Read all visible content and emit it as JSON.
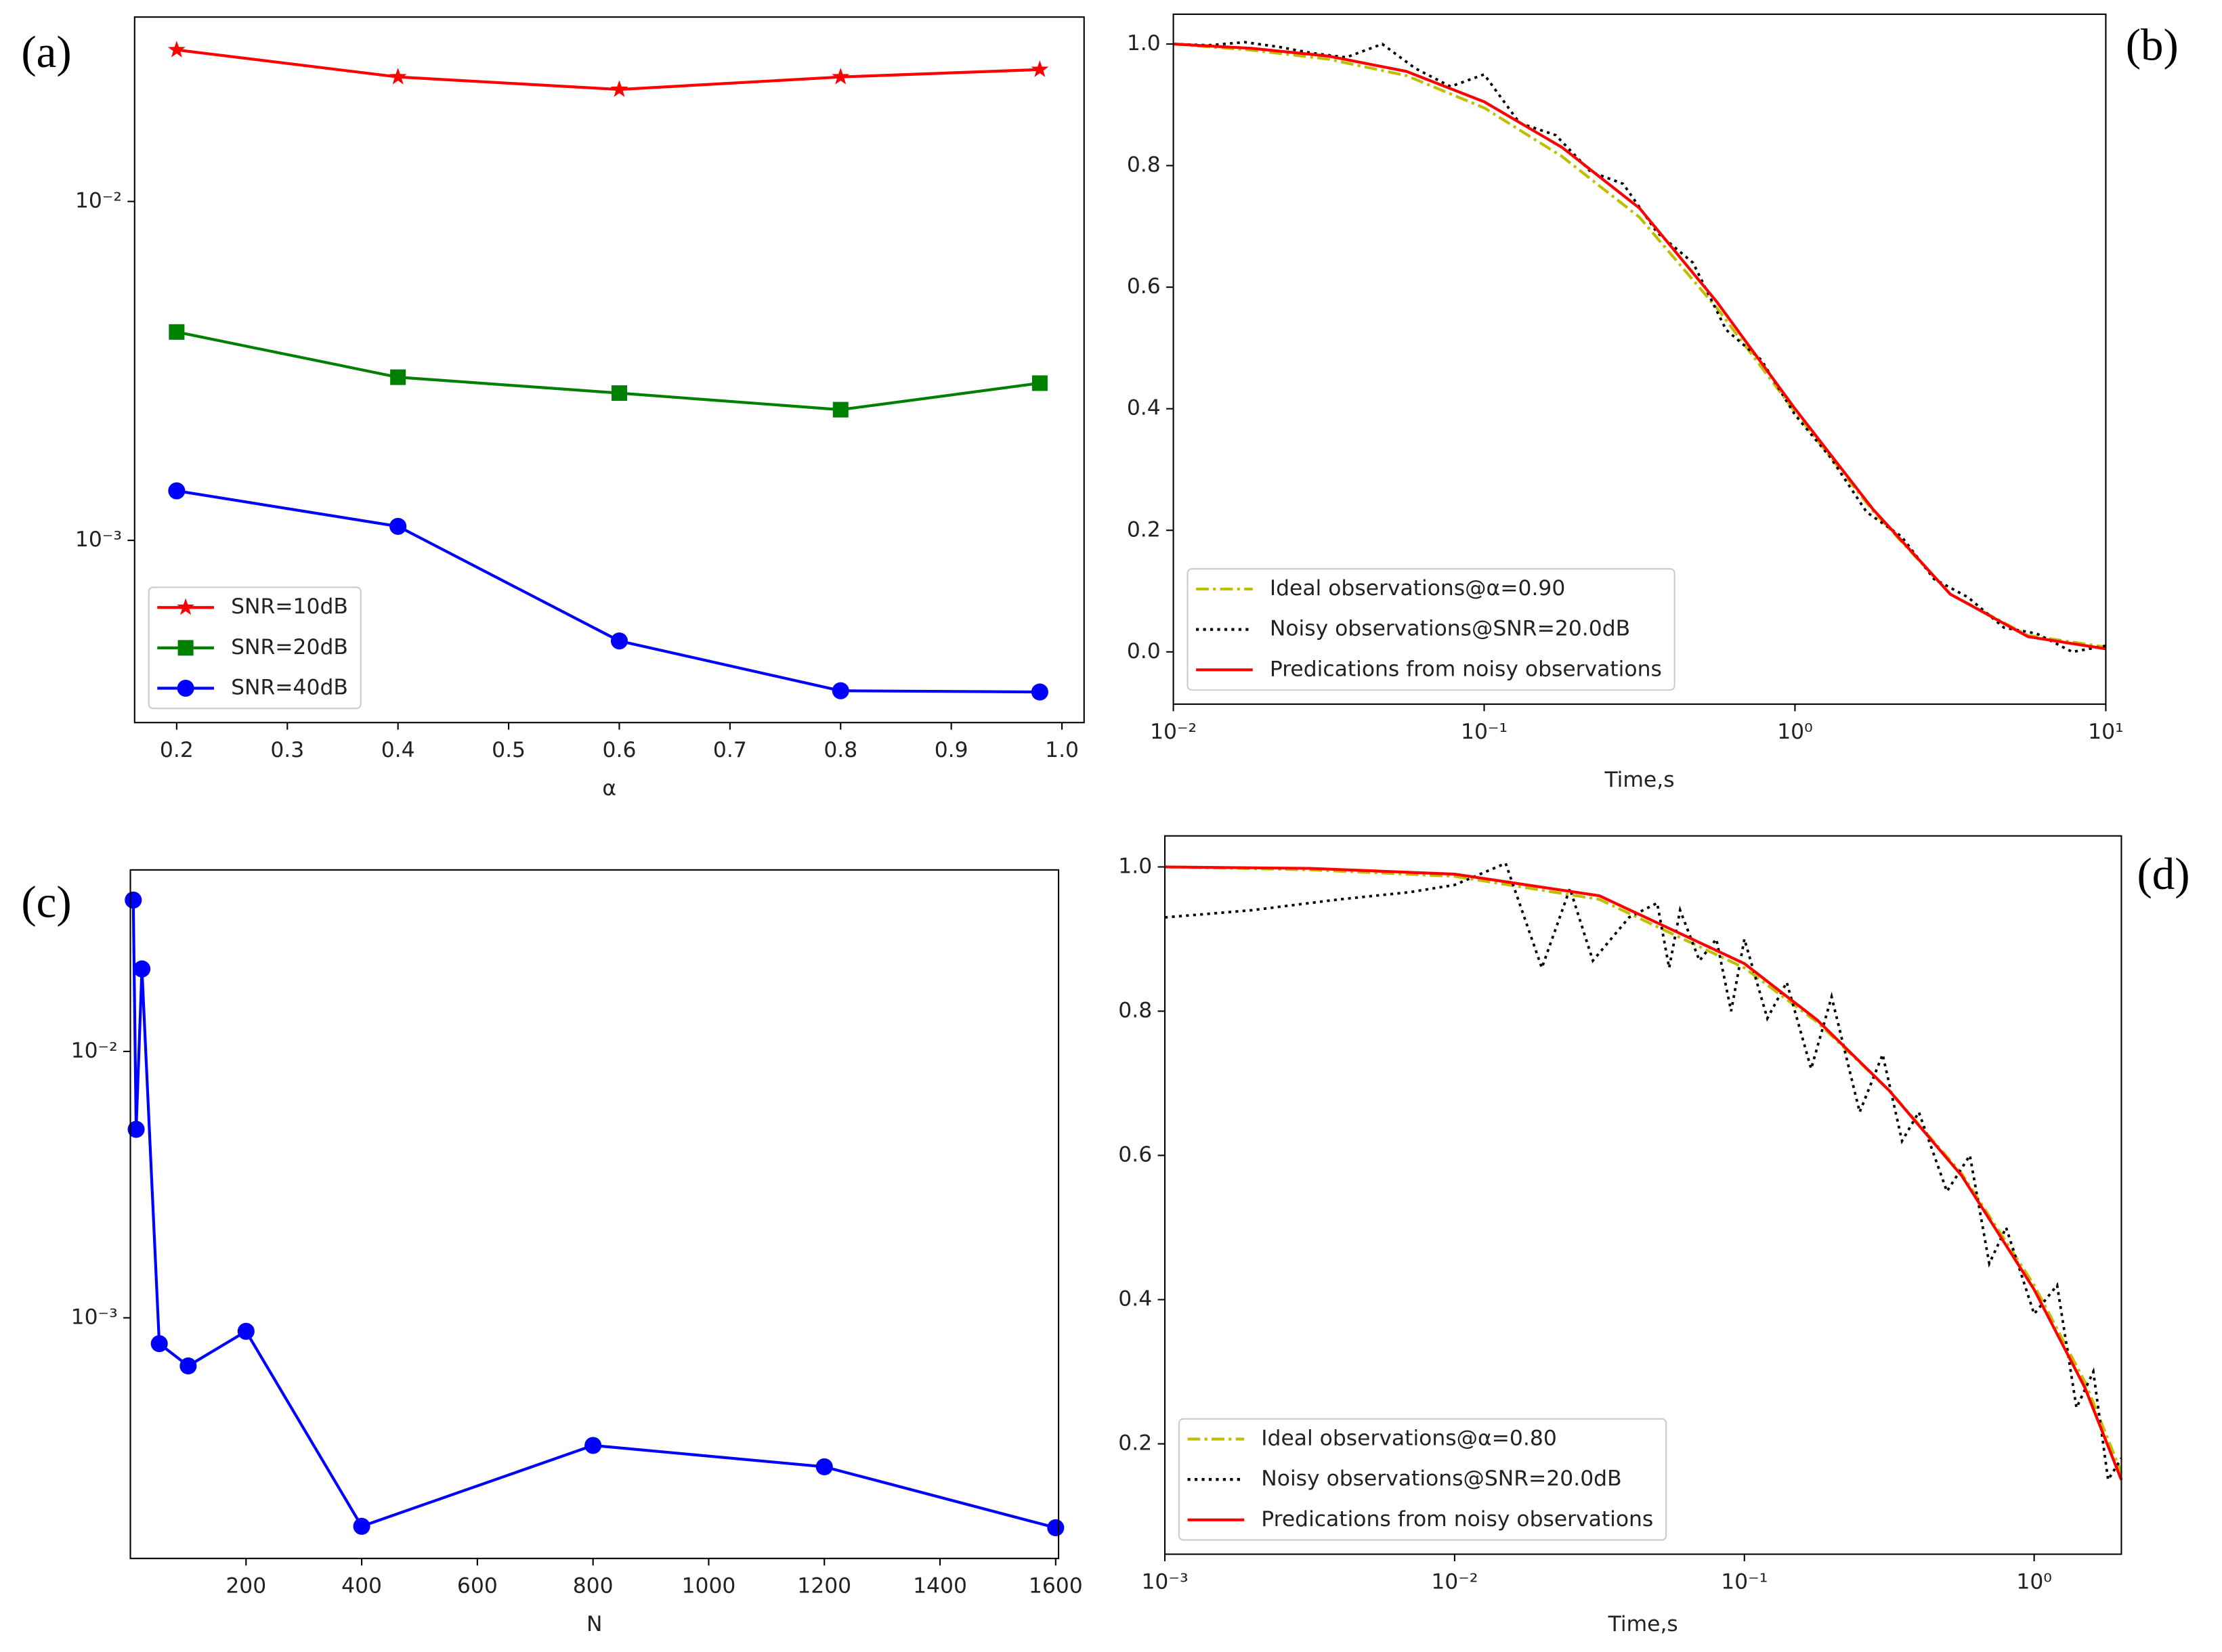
{
  "chart_data": [
    {
      "type": "line",
      "label": "(a)",
      "xlabel": "α",
      "xscale": "linear",
      "yscale": "log",
      "xlim": [
        0.162,
        1.02
      ],
      "ylim": [
        0.00029,
        0.035
      ],
      "xticks": [
        0.2,
        0.3,
        0.4,
        0.5,
        0.6,
        0.7,
        0.8,
        0.9,
        {
          "value": 1,
          "label": "1.0"
        }
      ],
      "yticks": [
        {
          "value": 0.001,
          "label": "10⁻³"
        },
        {
          "value": 0.01,
          "label": "10⁻²"
        }
      ],
      "legend": "lower left",
      "x": [
        0.2,
        0.4,
        0.6,
        0.8,
        0.98
      ],
      "series": [
        {
          "name": "SNR=10dB",
          "color": "#ff0000",
          "marker": "star",
          "linestyle": "solid",
          "values": [
            0.028,
            0.0233,
            0.0214,
            0.0233,
            0.0245
          ]
        },
        {
          "name": "SNR=20dB",
          "color": "#008000",
          "marker": "square",
          "linestyle": "solid",
          "values": [
            0.00412,
            0.00303,
            0.00272,
            0.00243,
            0.00291
          ]
        },
        {
          "name": "SNR=40dB",
          "color": "#0000ff",
          "marker": "circle",
          "linestyle": "solid",
          "values": [
            0.0014,
            0.0011,
            0.000505,
            0.00036,
            0.000357
          ]
        }
      ]
    },
    {
      "type": "line",
      "label": "(b)",
      "xlabel": "Time,s",
      "xscale": "log",
      "yscale": "linear",
      "xlim": [
        0.01,
        10
      ],
      "ylim": [
        -0.086,
        1.049
      ],
      "xticks": [
        {
          "value": 0.01,
          "label": "10⁻²"
        },
        {
          "value": 0.1,
          "label": "10⁻¹"
        },
        {
          "value": 1,
          "label": "10⁰"
        },
        {
          "value": 10,
          "label": "10¹"
        }
      ],
      "yticks": [
        {
          "value": 0,
          "label": "0.0"
        },
        0.2,
        0.4,
        0.6,
        0.8,
        {
          "value": 1,
          "label": "1.0"
        }
      ],
      "legend": "lower left",
      "series": [
        {
          "name": "Ideal observations@α=0.90",
          "color": "#bfbf00",
          "marker": "none",
          "linestyle": "dashdot",
          "x": [
            0.01,
            0.0178,
            0.0316,
            0.0562,
            0.1,
            0.178,
            0.316,
            0.562,
            1,
            1.78,
            3.16,
            5.62,
            10
          ],
          "values": [
            1.0,
            0.99,
            0.975,
            0.948,
            0.895,
            0.815,
            0.715,
            0.565,
            0.395,
            0.232,
            0.095,
            0.027,
            0.008
          ]
        },
        {
          "name": "Noisy observations@SNR=20.0dB",
          "color": "#000000",
          "marker": "none",
          "linestyle": "dotted",
          "x": [
            0.01,
            0.013,
            0.017,
            0.022,
            0.028,
            0.036,
            0.047,
            0.06,
            0.078,
            0.1,
            0.13,
            0.17,
            0.22,
            0.28,
            0.36,
            0.47,
            0.6,
            0.78,
            1.0,
            1.3,
            1.7,
            2.2,
            2.8,
            3.6,
            4.7,
            6.0,
            7.8,
            10
          ],
          "values": [
            1.0,
            0.998,
            1.003,
            0.995,
            0.985,
            0.978,
            1.0,
            0.96,
            0.93,
            0.95,
            0.87,
            0.85,
            0.79,
            0.77,
            0.69,
            0.64,
            0.53,
            0.48,
            0.39,
            0.32,
            0.23,
            0.19,
            0.12,
            0.09,
            0.04,
            0.03,
            0.0,
            0.01
          ]
        },
        {
          "name": "Predications from noisy observations",
          "color": "#ff0000",
          "marker": "none",
          "linestyle": "solid",
          "x": [
            0.01,
            0.0178,
            0.0316,
            0.0562,
            0.1,
            0.178,
            0.316,
            0.562,
            1,
            1.78,
            3.16,
            5.62,
            10
          ],
          "values": [
            1.0,
            0.993,
            0.98,
            0.955,
            0.905,
            0.83,
            0.73,
            0.575,
            0.4,
            0.235,
            0.095,
            0.025,
            0.005
          ]
        }
      ]
    },
    {
      "type": "line",
      "label": "(c)",
      "xlabel": "N",
      "xscale": "linear",
      "yscale": "log",
      "xlim": [
        0,
        1605
      ],
      "ylim": [
        0.000125,
        0.048
      ],
      "xticks": [
        200,
        400,
        600,
        800,
        1000,
        1200,
        1400,
        1600
      ],
      "yticks": [
        {
          "value": 0.001,
          "label": "10⁻³"
        },
        {
          "value": 0.01,
          "label": "10⁻²"
        }
      ],
      "x": [
        5,
        10,
        20,
        50,
        100,
        200,
        400,
        800,
        1200,
        1600
      ],
      "series": [
        {
          "color": "#0000ff",
          "marker": "circle",
          "linestyle": "solid",
          "values": [
            0.037,
            0.0051,
            0.0204,
            0.0008,
            0.00066,
            0.00089,
            0.000165,
            0.000332,
            0.000276,
            0.000163
          ]
        }
      ]
    },
    {
      "type": "line",
      "label": "(d)",
      "xlabel": "Time,s",
      "xscale": "log",
      "yscale": "linear",
      "xlim": [
        0.001,
        2
      ],
      "ylim": [
        0.047,
        1.043
      ],
      "xticks": [
        {
          "value": 0.001,
          "label": "10⁻³"
        },
        {
          "value": 0.01,
          "label": "10⁻²"
        },
        {
          "value": 0.1,
          "label": "10⁻¹"
        },
        {
          "value": 1,
          "label": "10⁰"
        }
      ],
      "yticks": [
        0.2,
        0.4,
        0.6,
        0.8,
        {
          "value": 1,
          "label": "1.0"
        }
      ],
      "legend": "lower left",
      "series": [
        {
          "name": "Ideal observations@α=0.80",
          "color": "#bfbf00",
          "marker": "none",
          "linestyle": "dashdot",
          "x": [
            0.001,
            0.00316,
            0.01,
            0.0316,
            0.1,
            0.178,
            0.316,
            0.562,
            1,
            1.5,
            2
          ],
          "values": [
            1.0,
            0.996,
            0.987,
            0.955,
            0.86,
            0.785,
            0.69,
            0.575,
            0.42,
            0.285,
            0.16
          ]
        },
        {
          "name": "Noisy observations@SNR=20.0dB",
          "color": "#000000",
          "marker": "none",
          "linestyle": "dotted",
          "x": [
            0.001,
            0.002,
            0.004,
            0.007,
            0.01,
            0.015,
            0.02,
            0.025,
            0.03,
            0.04,
            0.05,
            0.055,
            0.06,
            0.07,
            0.08,
            0.09,
            0.1,
            0.12,
            0.14,
            0.17,
            0.2,
            0.25,
            0.3,
            0.35,
            0.4,
            0.5,
            0.6,
            0.7,
            0.8,
            1.0,
            1.2,
            1.4,
            1.6,
            1.8,
            2.0
          ],
          "values": [
            0.93,
            0.94,
            0.955,
            0.965,
            0.975,
            1.005,
            0.86,
            0.97,
            0.87,
            0.93,
            0.95,
            0.86,
            0.94,
            0.87,
            0.9,
            0.8,
            0.9,
            0.79,
            0.84,
            0.72,
            0.82,
            0.66,
            0.74,
            0.62,
            0.66,
            0.55,
            0.6,
            0.45,
            0.5,
            0.38,
            0.42,
            0.25,
            0.3,
            0.15,
            0.18
          ]
        },
        {
          "name": "Predications from noisy observations",
          "color": "#ff0000",
          "marker": "none",
          "linestyle": "solid",
          "x": [
            0.001,
            0.00316,
            0.01,
            0.0316,
            0.1,
            0.178,
            0.316,
            0.562,
            1,
            1.5,
            2
          ],
          "values": [
            1.0,
            0.998,
            0.99,
            0.96,
            0.866,
            0.788,
            0.69,
            0.572,
            0.414,
            0.277,
            0.15
          ]
        }
      ]
    }
  ]
}
